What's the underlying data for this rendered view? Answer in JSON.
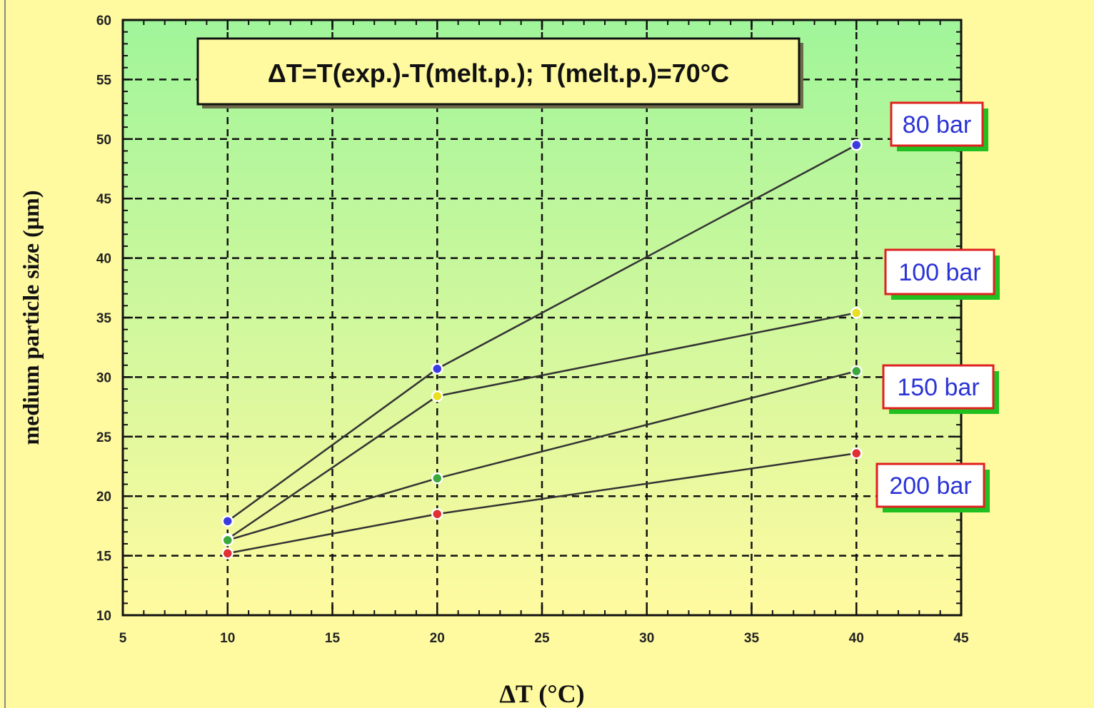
{
  "chart_data": {
    "type": "line",
    "title": "",
    "annotation": "ΔT=T(exp.)-T(melt.p.); T(melt.p.)=70°C",
    "xlabel": "ΔT (°C)",
    "ylabel": "medium particle size (µm)",
    "xlim": [
      5,
      45
    ],
    "ylim": [
      10,
      60
    ],
    "x_ticks": [
      "5",
      "10",
      "15",
      "20",
      "25",
      "30",
      "35",
      "40",
      "45"
    ],
    "y_ticks": [
      "10",
      "15",
      "20",
      "25",
      "30",
      "35",
      "40",
      "45",
      "50",
      "55",
      "60"
    ],
    "grid": true,
    "x": [
      10,
      20,
      40
    ],
    "series": [
      {
        "name": "80 bar",
        "values": [
          17.9,
          30.7,
          49.5
        ],
        "marker_color": "#3a3ae0"
      },
      {
        "name": "100 bar",
        "values": [
          16.4,
          28.4,
          35.4
        ],
        "marker_color": "#e8e020"
      },
      {
        "name": "150 bar",
        "values": [
          16.3,
          21.5,
          30.5
        ],
        "marker_color": "#3aa83a"
      },
      {
        "name": "200 bar",
        "values": [
          15.2,
          18.5,
          23.6
        ],
        "marker_color": "#e03030"
      }
    ],
    "legend": "series labels at right"
  },
  "colors": {
    "page_background": "#fffaa0",
    "plot_top": "#a0f59a",
    "plot_bottom": "#fffaa0",
    "label_border": "#e02020",
    "label_shadow": "#20c020",
    "label_text": "#2b33d6",
    "line": "#333333"
  }
}
